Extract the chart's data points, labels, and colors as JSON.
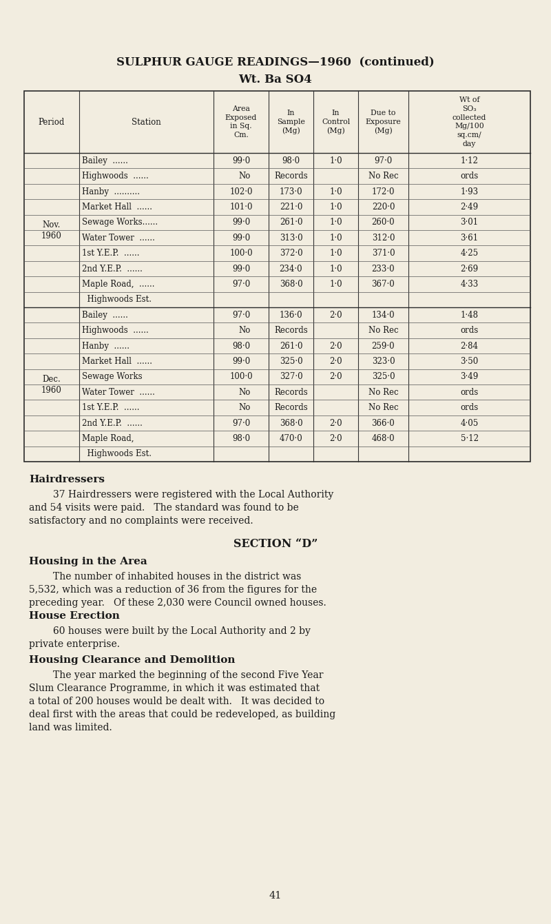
{
  "bg_color": "#f2ede0",
  "title1": "SULPHUR GAUGE READINGS—1960  (continued)",
  "title2": "Wt. Ba SO4",
  "page_number": "41",
  "col_headers": [
    "Period",
    "Station",
    "Area\nExposed\nin Sq.\nCm.",
    "In\nSample\n(Mg)",
    "In\nControl\n(Mg)",
    "Due to\nExposure\n(Mg)",
    "Wt of\nSO₃\ncollected\nMg/100\nsq.cm/\nday"
  ],
  "nov_data": [
    [
      "Bailey  ......",
      "99·0",
      "98·0",
      "1·0",
      "97·0",
      "1·12"
    ],
    [
      "Highwoods  ......",
      "No",
      "Records",
      "",
      "No Rec",
      "ords"
    ],
    [
      "Hanby  ..........",
      "102·0",
      "173·0",
      "1·0",
      "172·0",
      "1·93"
    ],
    [
      "Market Hall  ......",
      "101·0",
      "221·0",
      "1·0",
      "220·0",
      "2·49"
    ],
    [
      "Sewage Works......",
      "99·0",
      "261·0",
      "1·0",
      "260·0",
      "3·01"
    ],
    [
      "Water Tower  ......",
      "99·0",
      "313·0",
      "1·0",
      "312·0",
      "3·61"
    ],
    [
      "1st Y.E.P.  ......",
      "100·0",
      "372·0",
      "1·0",
      "371·0",
      "4·25"
    ],
    [
      "2nd Y.E.P.  ......",
      "99·0",
      "234·0",
      "1·0",
      "233·0",
      "2·69"
    ],
    [
      "Maple Road,  ......",
      "97·0",
      "368·0",
      "1·0",
      "367·0",
      "4·33"
    ],
    [
      "  Highwoods Est.",
      "",
      "",
      "",
      "",
      ""
    ]
  ],
  "dec_data": [
    [
      "Bailey  ......",
      "97·0",
      "136·0",
      "2·0",
      "134·0",
      "1·48"
    ],
    [
      "Highwoods  ......",
      "No",
      "Records",
      "",
      "No Rec",
      "ords"
    ],
    [
      "Hanby  ......",
      "98·0",
      "261·0",
      "2·0",
      "259·0",
      "2·84"
    ],
    [
      "Market Hall  ......",
      "99·0",
      "325·0",
      "2·0",
      "323·0",
      "3·50"
    ],
    [
      "Sewage Works",
      "100·0",
      "327·0",
      "2·0",
      "325·0",
      "3·49"
    ],
    [
      "Water Tower  ......",
      "No",
      "Records",
      "",
      "No Rec",
      "ords"
    ],
    [
      "1st Y.E.P.  ......",
      "No",
      "Records",
      "",
      "No Rec",
      "ords"
    ],
    [
      "2nd Y.E.P.  ......",
      "97·0",
      "368·0",
      "2·0",
      "366·0",
      "4·05"
    ],
    [
      "Maple Road,",
      "98·0",
      "470·0",
      "2·0",
      "468·0",
      "5·12"
    ],
    [
      "  Highwoods Est.",
      "",
      "",
      "",
      "",
      ""
    ]
  ],
  "hairdressers_title": "Hairdressers",
  "hairdressers_para": "        37 Hairdressers were registered with the Local Authority and 54 visits were paid.   The standard was found to be satisfactory and no complaints were received.",
  "section_d_title": "SECTION “D”",
  "housing_area_title": "Housing in the Area",
  "housing_area_para": "        The number of inhabited houses in the district was 5,532, which was a reduction of 36 from the figures for the preceding year.   Of these 2,030 were Council owned houses.",
  "house_erection_title": "House Erection",
  "house_erection_para": "        60 houses were built by the Local Authority and 2 by private enterprise.",
  "clearance_title": "Housing Clearance and Demolition",
  "clearance_para": "        The year marked the beginning of the second Five Year Slum Clearance Programme, in which it was estimated that a total of 200 houses would be dealt with.   It was decided to deal first with the areas that could be redeveloped, as building land was limited."
}
